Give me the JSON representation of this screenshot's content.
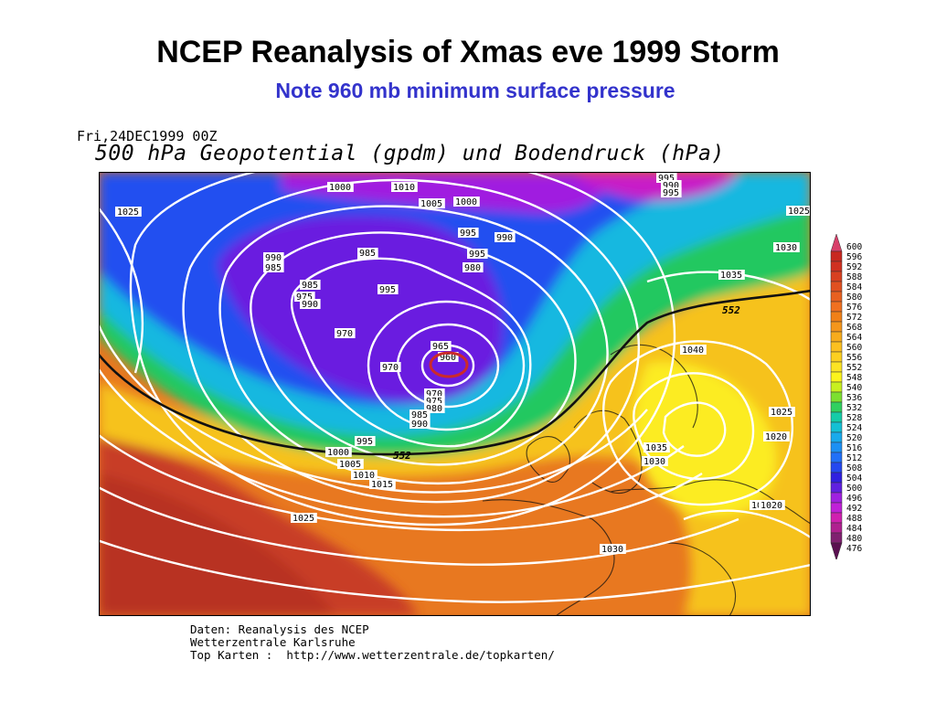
{
  "slide": {
    "title": "NCEP Reanalysis of Xmas eve 1999 Storm",
    "subtitle": "Note 960 mb minimum surface pressure",
    "subtitle_color": "#3333cc"
  },
  "map": {
    "date_label": "Fri,24DEC1999 00Z",
    "heading": "500 hPa Geopotential (gpdm) und Bodendruck (hPa)",
    "highlight_color": "#cc2a2a",
    "isobar_color": "#ffffff",
    "contour_552_label": "552",
    "pressure_labels": [
      "1025",
      "1000",
      "1010",
      "1005",
      "1000",
      "995",
      "990",
      "995",
      "990",
      "985",
      "980",
      "985",
      "995",
      "990",
      "995",
      "980",
      "975",
      "990",
      "985",
      "995",
      "1030",
      "1035",
      "1025",
      "970",
      "965",
      "960",
      "970",
      "970",
      "975",
      "980",
      "985",
      "990",
      "995",
      "1040",
      "1025",
      "1020",
      "1000",
      "1005",
      "1010",
      "1015",
      "1035",
      "1030",
      "1020",
      "1020",
      "1025",
      "1030"
    ]
  },
  "legend": {
    "colors": [
      "#d8406a",
      "#c82820",
      "#d03020",
      "#d84020",
      "#e05020",
      "#e86020",
      "#f07020",
      "#f08018",
      "#f4961c",
      "#f8ac1c",
      "#fcc020",
      "#fcd020",
      "#fce424",
      "#fcf41c",
      "#c8f020",
      "#7ce030",
      "#30d060",
      "#14cca8",
      "#14c0d4",
      "#18aaec",
      "#1c90f4",
      "#2070f8",
      "#2448f0",
      "#3020e0",
      "#6020e0",
      "#a020e0",
      "#c020d8",
      "#d020b0",
      "#b02090",
      "#802070",
      "#5a1050"
    ],
    "labels": [
      "600",
      "596",
      "592",
      "588",
      "584",
      "580",
      "576",
      "572",
      "568",
      "564",
      "560",
      "556",
      "552",
      "548",
      "540",
      "536",
      "532",
      "528",
      "524",
      "520",
      "516",
      "512",
      "508",
      "504",
      "500",
      "496",
      "492",
      "488",
      "484",
      "480",
      "476"
    ]
  },
  "credits": {
    "line1": "Daten: Reanalysis des NCEP",
    "line2": "Wetterzentrale Karlsruhe",
    "line3": "Top Karten :  http://www.wetterzentrale.de/topkarten/"
  }
}
